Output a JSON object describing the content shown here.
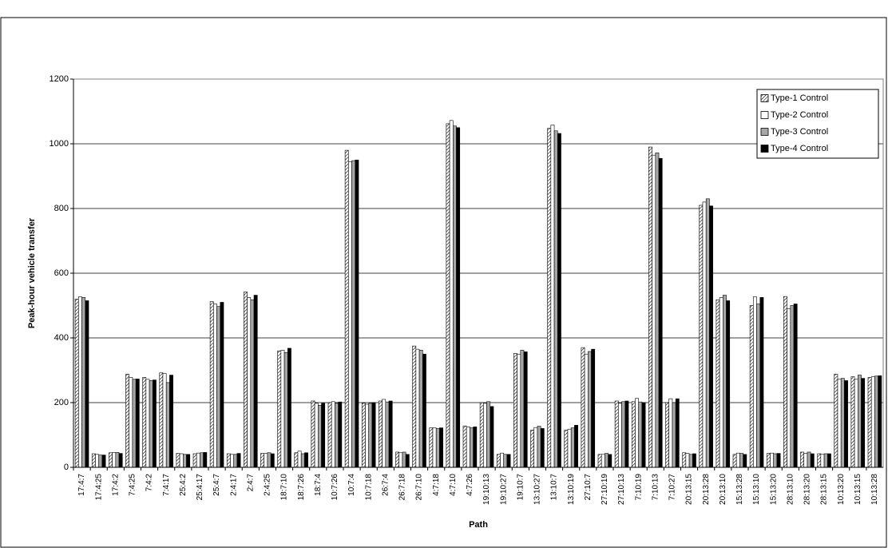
{
  "chart_data": {
    "type": "bar",
    "x_label": "Path",
    "y_label": "Peak-hour vehicle transfer",
    "categories": [
      "17:4:7",
      "17:4:25",
      "17:4:2",
      "7:4:25",
      "7:4:2",
      "7:4:17",
      "25:4:2",
      "25:4:17",
      "25:4:7",
      "2:4:17",
      "2:4:7",
      "2:4:25",
      "18:7:10",
      "18:7:26",
      "18:7:4",
      "10:7:26",
      "10:7:4",
      "10:7:18",
      "26:7:4",
      "26:7:18",
      "26:7:10",
      "4:7:18",
      "4:7:10",
      "4:7:26",
      "19:10:13",
      "19:10:27",
      "19:10:7",
      "13:10:27",
      "13:10:7",
      "13:10:19",
      "27:10:7",
      "27:10:19",
      "27:10:13",
      "7:10:19",
      "7:10:13",
      "7:10:27",
      "20:13:15",
      "20:13:28",
      "20:13:10",
      "15:13:28",
      "15:13:10",
      "15:13:20",
      "28:13:10",
      "28:13:20",
      "28:13:15",
      "10:13:20",
      "10:13:15",
      "10:13:28"
    ],
    "series": [
      {
        "name": "Type-1 Control",
        "color": "#ffffff",
        "pattern": "hatch",
        "values": [
          520,
          42,
          45,
          288,
          278,
          292,
          43,
          42,
          512,
          42,
          542,
          43,
          360,
          45,
          205,
          200,
          980,
          198,
          205,
          47,
          375,
          122,
          1062,
          128,
          200,
          40,
          352,
          115,
          1048,
          115,
          370,
          40,
          205,
          203,
          990,
          200,
          45,
          810,
          518,
          40,
          500,
          43,
          528,
          47,
          42,
          288,
          280,
          278
        ]
      },
      {
        "name": "Type-2 Control",
        "color": "#ffffff",
        "values": [
          527,
          40,
          46,
          278,
          272,
          290,
          42,
          44,
          505,
          40,
          525,
          43,
          362,
          50,
          198,
          203,
          945,
          195,
          210,
          45,
          365,
          122,
          1072,
          125,
          198,
          44,
          350,
          123,
          1058,
          118,
          350,
          40,
          198,
          213,
          965,
          212,
          43,
          820,
          525,
          44,
          527,
          44,
          490,
          43,
          40,
          272,
          272,
          280
        ]
      },
      {
        "name": "Type-3 Control",
        "color": "#a6a6a6",
        "values": [
          525,
          38,
          46,
          272,
          268,
          262,
          40,
          45,
          497,
          40,
          518,
          45,
          355,
          42,
          192,
          198,
          948,
          198,
          202,
          47,
          362,
          120,
          1055,
          122,
          203,
          40,
          362,
          127,
          1040,
          122,
          358,
          43,
          203,
          202,
          972,
          200,
          40,
          830,
          532,
          43,
          505,
          42,
          500,
          47,
          42,
          275,
          285,
          282
        ]
      },
      {
        "name": "Type-4 Control",
        "color": "#000000",
        "values": [
          515,
          38,
          43,
          273,
          270,
          285,
          40,
          46,
          510,
          43,
          532,
          42,
          368,
          45,
          198,
          202,
          950,
          200,
          205,
          40,
          350,
          122,
          1050,
          125,
          188,
          40,
          357,
          120,
          1032,
          130,
          365,
          40,
          205,
          200,
          955,
          212,
          42,
          808,
          515,
          40,
          525,
          43,
          505,
          42,
          42,
          268,
          275,
          283
        ]
      }
    ],
    "ylim": [
      0,
      1200
    ],
    "yticks": [
      0,
      200,
      400,
      600,
      800,
      1000,
      1200
    ],
    "grid": true,
    "legend": "upper right"
  }
}
